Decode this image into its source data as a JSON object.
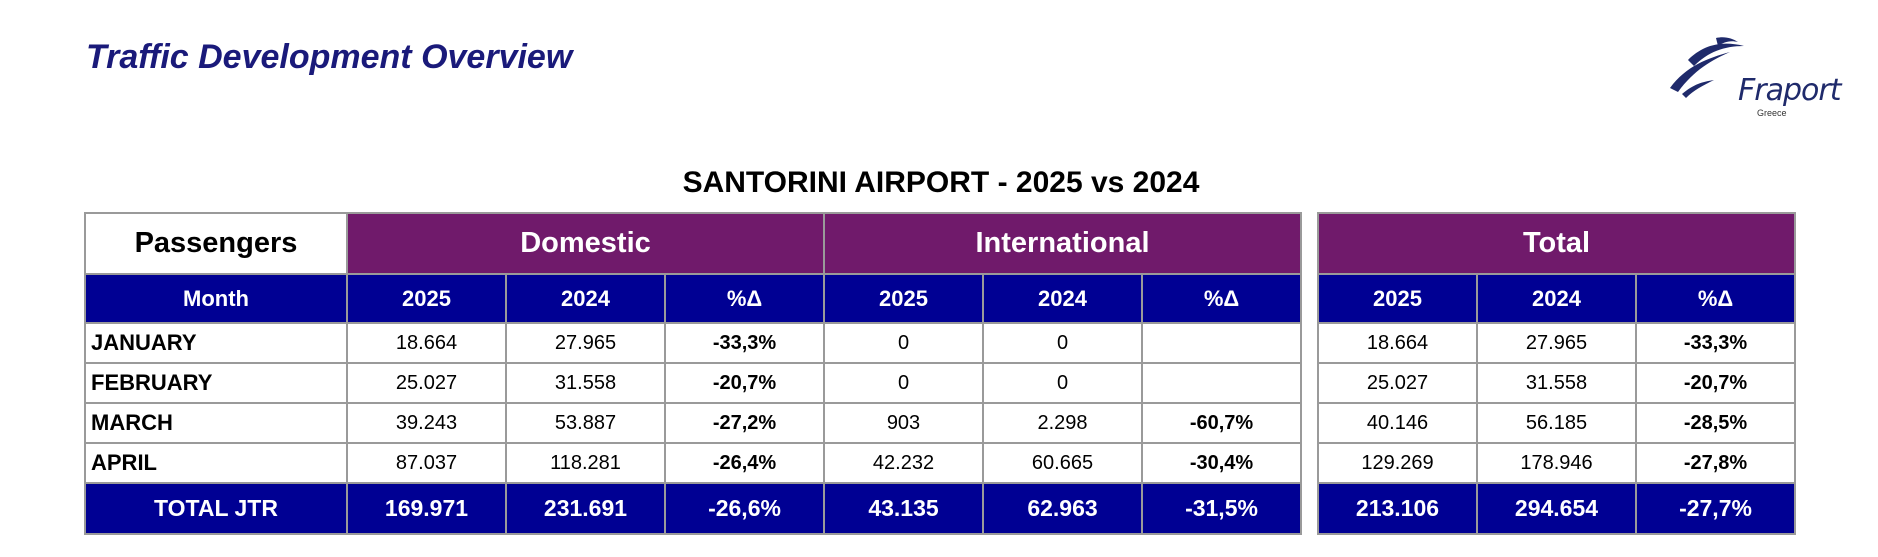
{
  "page_title": "Traffic Development Overview",
  "logo": {
    "brand": "Fraport",
    "sub": "Greece",
    "icon": "fraport-swoosh-icon"
  },
  "report_title": "SANTORINI AIRPORT - 2025 vs 2024",
  "table": {
    "corner_label": "Passengers",
    "groups": {
      "domestic": "Domestic",
      "international": "International",
      "total": "Total"
    },
    "sub_headers": {
      "month": "Month",
      "y2025": "2025",
      "y2024": "2024",
      "pct": "%Δ"
    },
    "rows": [
      {
        "month": "JANUARY",
        "dom_2025": "18.664",
        "dom_2024": "27.965",
        "dom_pct": "-33,3%",
        "int_2025": "0",
        "int_2024": "0",
        "int_pct": "",
        "tot_2025": "18.664",
        "tot_2024": "27.965",
        "tot_pct": "-33,3%"
      },
      {
        "month": "FEBRUARY",
        "dom_2025": "25.027",
        "dom_2024": "31.558",
        "dom_pct": "-20,7%",
        "int_2025": "0",
        "int_2024": "0",
        "int_pct": "",
        "tot_2025": "25.027",
        "tot_2024": "31.558",
        "tot_pct": "-20,7%"
      },
      {
        "month": "MARCH",
        "dom_2025": "39.243",
        "dom_2024": "53.887",
        "dom_pct": "-27,2%",
        "int_2025": "903",
        "int_2024": "2.298",
        "int_pct": "-60,7%",
        "tot_2025": "40.146",
        "tot_2024": "56.185",
        "tot_pct": "-28,5%"
      },
      {
        "month": "APRIL",
        "dom_2025": "87.037",
        "dom_2024": "118.281",
        "dom_pct": "-26,4%",
        "int_2025": "42.232",
        "int_2024": "60.665",
        "int_pct": "-30,4%",
        "tot_2025": "129.269",
        "tot_2024": "178.946",
        "tot_pct": "-27,8%"
      }
    ],
    "total_row": {
      "label": "TOTAL JTR",
      "dom_2025": "169.971",
      "dom_2024": "231.691",
      "dom_pct": "-26,6%",
      "int_2025": "43.135",
      "int_2024": "62.963",
      "int_pct": "-31,5%",
      "tot_2025": "213.106",
      "tot_2024": "294.654",
      "tot_pct": "-27,7%"
    }
  },
  "colors": {
    "group_header": "#701a6b",
    "sub_header": "#000093",
    "title": "#1a1a7a",
    "grid": "#9a9a9a"
  }
}
